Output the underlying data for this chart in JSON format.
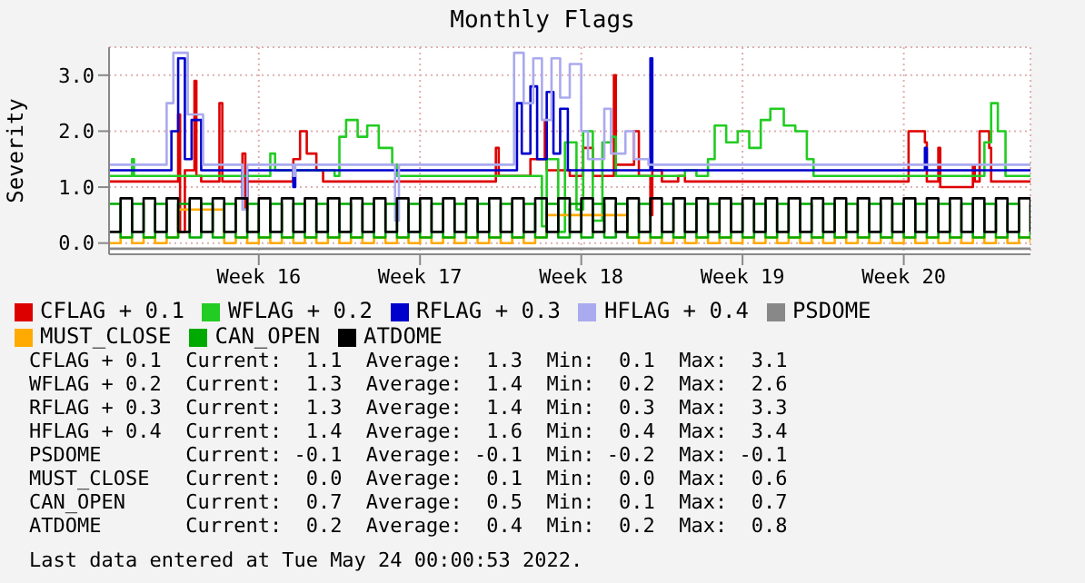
{
  "chart_data": {
    "type": "step",
    "title": "Monthly Flags",
    "ylabel": "Severity",
    "ylim": [
      -0.2,
      3.5
    ],
    "yticks": [
      {
        "value": 0,
        "label": "0.0"
      },
      {
        "value": 1,
        "label": "1.0"
      },
      {
        "value": 2,
        "label": "2.0"
      },
      {
        "value": 3,
        "label": "3.0"
      }
    ],
    "xlim": [
      "2022-04-15T00:00",
      "2022-05-25T00:00"
    ],
    "xticks": [
      {
        "value": "2022-04-21T12:00",
        "label": "Week 16"
      },
      {
        "value": "2022-04-28T12:00",
        "label": "Week 17"
      },
      {
        "value": "2022-05-05T12:00",
        "label": "Week 18"
      },
      {
        "value": "2022-05-12T12:00",
        "label": "Week 19"
      },
      {
        "value": "2022-05-19T12:00",
        "label": "Week 20"
      }
    ],
    "grid": true,
    "legend": "bottom",
    "marker": "none",
    "x": [
      "2022-04-15T00:00",
      "2022-04-15T12:00",
      "2022-04-16T00:00",
      "2022-04-16T12:00",
      "2022-04-17T00:00",
      "2022-04-17T12:00",
      "2022-04-18T00:00",
      "2022-04-18T12:00",
      "2022-04-19T00:00",
      "2022-04-19T12:00",
      "2022-04-20T00:00",
      "2022-04-20T12:00",
      "2022-04-21T00:00",
      "2022-04-21T12:00",
      "2022-04-22T00:00",
      "2022-04-22T12:00",
      "2022-04-23T00:00",
      "2022-04-23T12:00",
      "2022-04-24T00:00",
      "2022-04-24T12:00",
      "2022-04-25T00:00",
      "2022-04-25T12:00",
      "2022-04-26T00:00",
      "2022-04-26T12:00",
      "2022-04-27T00:00",
      "2022-04-27T12:00",
      "2022-04-28T00:00",
      "2022-04-28T12:00",
      "2022-04-29T00:00",
      "2022-04-29T12:00",
      "2022-04-30T00:00",
      "2022-04-30T12:00",
      "2022-05-01T00:00",
      "2022-05-01T12:00",
      "2022-05-02T00:00",
      "2022-05-02T12:00",
      "2022-05-03T00:00",
      "2022-05-03T12:00",
      "2022-05-04T00:00",
      "2022-05-04T12:00",
      "2022-05-05T00:00",
      "2022-05-05T12:00",
      "2022-05-06T00:00",
      "2022-05-06T12:00",
      "2022-05-07T00:00",
      "2022-05-07T12:00",
      "2022-05-08T00:00",
      "2022-05-08T12:00",
      "2022-05-09T00:00",
      "2022-05-09T12:00",
      "2022-05-10T00:00",
      "2022-05-10T12:00",
      "2022-05-11T00:00",
      "2022-05-11T12:00",
      "2022-05-12T00:00",
      "2022-05-12T12:00",
      "2022-05-13T00:00",
      "2022-05-13T12:00",
      "2022-05-14T00:00",
      "2022-05-14T12:00",
      "2022-05-15T00:00",
      "2022-05-15T12:00",
      "2022-05-16T00:00",
      "2022-05-16T12:00",
      "2022-05-17T00:00",
      "2022-05-17T12:00",
      "2022-05-18T00:00",
      "2022-05-18T12:00",
      "2022-05-19T00:00",
      "2022-05-19T12:00",
      "2022-05-20T00:00",
      "2022-05-20T12:00",
      "2022-05-21T00:00",
      "2022-05-21T12:00",
      "2022-05-22T00:00",
      "2022-05-22T12:00",
      "2022-05-23T00:00",
      "2022-05-23T12:00",
      "2022-05-24T00:00",
      "2022-05-24T12:00",
      "2022-05-25T00:00"
    ],
    "series": [
      {
        "name": "CFLAG + 0.1",
        "color": "#dd0000",
        "x": [
          "2022-04-15T00:00",
          "2022-04-17T22:00",
          "2022-04-18T00:00",
          "2022-04-18T02:00",
          "2022-04-18T07:00",
          "2022-04-18T17:00",
          "2022-04-18T19:00",
          "2022-04-19T00:00",
          "2022-04-19T19:00",
          "2022-04-19T22:00",
          "2022-04-20T19:00",
          "2022-04-20T22:00",
          "2022-04-21T00:00",
          "2022-04-23T00:00",
          "2022-04-23T07:00",
          "2022-04-23T14:00",
          "2022-04-24T00:00",
          "2022-04-24T07:00",
          "2022-05-01T14:00",
          "2022-05-01T19:00",
          "2022-05-01T22:00",
          "2022-05-03T07:00",
          "2022-05-03T22:00",
          "2022-05-04T00:00",
          "2022-05-05T00:00",
          "2022-05-05T14:00",
          "2022-05-06T00:00",
          "2022-05-06T22:00",
          "2022-05-07T00:00",
          "2022-05-07T19:00",
          "2022-05-08T00:00",
          "2022-05-08T12:00",
          "2022-05-08T14:00",
          "2022-05-09T00:00",
          "2022-05-09T17:00",
          "2022-05-10T00:00",
          "2022-05-19T14:00",
          "2022-05-19T17:00",
          "2022-05-20T10:00",
          "2022-05-20T12:00",
          "2022-05-21T00:00",
          "2022-05-21T02:00",
          "2022-05-22T12:00",
          "2022-05-22T14:00",
          "2022-05-22T19:00",
          "2022-05-23T05:00",
          "2022-05-23T07:00",
          "2022-05-25T00:00"
        ],
        "values": [
          1.1,
          1.1,
          2.3,
          0.2,
          1.3,
          2.9,
          1.2,
          1.1,
          2.5,
          1.1,
          1.6,
          0.6,
          1.1,
          1.5,
          2.0,
          1.6,
          1.3,
          1.1,
          1.1,
          1.7,
          1.2,
          1.5,
          2.2,
          1.3,
          1.2,
          1.7,
          1.2,
          3.0,
          1.4,
          2.0,
          1.2,
          0.5,
          1.3,
          1.1,
          1.2,
          1.1,
          1.1,
          2.0,
          1.8,
          1.1,
          1.7,
          1.0,
          1.4,
          1.1,
          2.0,
          1.7,
          1.1,
          1.1
        ]
      },
      {
        "name": "WFLAG + 0.2",
        "color": "#22cc22",
        "x": [
          "2022-04-15T00:00",
          "2022-04-16T00:00",
          "2022-04-16T02:00",
          "2022-04-21T12:00",
          "2022-04-22T00:00",
          "2022-04-22T05:00",
          "2022-04-24T19:00",
          "2022-04-25T00:00",
          "2022-04-25T07:00",
          "2022-04-25T19:00",
          "2022-04-26T05:00",
          "2022-04-26T17:00",
          "2022-04-27T07:00",
          "2022-04-27T12:00",
          "2022-05-03T12:00",
          "2022-05-03T19:00",
          "2022-05-04T00:00",
          "2022-05-04T12:00",
          "2022-05-04T19:00",
          "2022-05-05T07:00",
          "2022-05-05T14:00",
          "2022-05-06T00:00",
          "2022-05-06T10:00",
          "2022-05-06T19:00",
          "2022-05-07T00:00",
          "2022-05-10T00:00",
          "2022-05-10T12:00",
          "2022-05-11T00:00",
          "2022-05-11T07:00",
          "2022-05-11T19:00",
          "2022-05-12T07:00",
          "2022-05-12T19:00",
          "2022-05-13T07:00",
          "2022-05-13T17:00",
          "2022-05-14T07:00",
          "2022-05-14T19:00",
          "2022-05-15T07:00",
          "2022-05-15T14:00",
          "2022-05-22T19:00",
          "2022-05-23T00:00",
          "2022-05-23T07:00",
          "2022-05-23T14:00",
          "2022-05-23T22:00",
          "2022-05-25T00:00"
        ],
        "values": [
          1.2,
          1.5,
          1.2,
          1.2,
          1.6,
          1.3,
          1.2,
          1.9,
          2.2,
          1.9,
          2.1,
          1.7,
          1.4,
          1.2,
          1.2,
          0.3,
          1.5,
          0.2,
          1.8,
          0.6,
          2.0,
          0.4,
          1.8,
          1.9,
          1.2,
          1.3,
          1.2,
          1.5,
          2.1,
          1.8,
          2.0,
          1.7,
          2.2,
          2.4,
          2.1,
          2.0,
          1.5,
          1.2,
          1.2,
          1.8,
          2.5,
          2.0,
          1.2,
          1.2
        ]
      },
      {
        "name": "RFLAG + 0.3",
        "color": "#0000cc",
        "x": [
          "2022-04-15T00:00",
          "2022-04-17T14:00",
          "2022-04-17T17:00",
          "2022-04-18T00:00",
          "2022-04-18T07:00",
          "2022-04-18T14:00",
          "2022-04-18T22:00",
          "2022-04-19T00:00",
          "2022-04-20T17:00",
          "2022-04-20T19:00",
          "2022-04-21T00:00",
          "2022-04-23T00:00",
          "2022-04-23T02:00",
          "2022-05-02T12:00",
          "2022-05-02T17:00",
          "2022-05-02T22:00",
          "2022-05-03T07:00",
          "2022-05-03T14:00",
          "2022-05-04T00:00",
          "2022-05-04T07:00",
          "2022-05-04T14:00",
          "2022-05-04T22:00",
          "2022-05-08T10:00",
          "2022-05-08T12:00",
          "2022-05-08T14:00",
          "2022-05-20T07:00",
          "2022-05-20T10:00",
          "2022-05-20T12:00",
          "2022-05-25T00:00"
        ],
        "values": [
          1.3,
          1.3,
          2.0,
          3.3,
          1.5,
          2.2,
          2.2,
          1.3,
          1.3,
          0.8,
          1.3,
          1.0,
          1.3,
          1.3,
          2.5,
          1.6,
          2.8,
          1.5,
          2.7,
          1.6,
          2.4,
          1.3,
          1.3,
          3.3,
          1.3,
          1.3,
          1.7,
          1.3,
          1.3
        ]
      },
      {
        "name": "HFLAG + 0.4",
        "color": "#aaaaee",
        "x": [
          "2022-04-15T00:00",
          "2022-04-17T10:00",
          "2022-04-17T12:00",
          "2022-04-17T19:00",
          "2022-04-18T07:00",
          "2022-04-18T10:00",
          "2022-04-19T00:00",
          "2022-04-19T02:00",
          "2022-04-20T17:00",
          "2022-04-20T19:00",
          "2022-04-21T00:00",
          "2022-04-23T00:00",
          "2022-04-23T02:00",
          "2022-04-27T07:00",
          "2022-04-27T10:00",
          "2022-04-27T14:00",
          "2022-05-02T10:00",
          "2022-05-02T14:00",
          "2022-05-03T00:00",
          "2022-05-03T10:00",
          "2022-05-03T19:00",
          "2022-05-04T05:00",
          "2022-05-04T14:00",
          "2022-05-05T00:00",
          "2022-05-05T12:00",
          "2022-05-05T19:00",
          "2022-05-06T12:00",
          "2022-05-06T19:00",
          "2022-05-07T10:00",
          "2022-05-07T19:00",
          "2022-05-08T10:00",
          "2022-05-25T00:00"
        ],
        "values": [
          1.4,
          1.4,
          2.5,
          3.4,
          3.4,
          2.3,
          2.3,
          1.4,
          1.4,
          0.6,
          1.4,
          1.2,
          1.4,
          1.4,
          0.4,
          1.4,
          1.4,
          3.4,
          2.5,
          3.3,
          2.2,
          3.3,
          2.6,
          3.2,
          2.0,
          1.5,
          2.4,
          1.6,
          2.0,
          1.5,
          1.4,
          1.4
        ]
      },
      {
        "name": "PSDOME",
        "color": "#888888",
        "x": [
          "2022-04-15T00:00",
          "2022-05-25T00:00"
        ],
        "values": [
          -0.1,
          -0.1
        ]
      },
      {
        "name": "MUST_CLOSE",
        "color": "#ffaa00",
        "values": [
          0.0,
          0.1,
          0.0,
          0.1,
          0.0,
          0.1,
          0.6,
          0.6,
          0.6,
          0.6,
          0.0,
          0.1,
          0.0,
          0.1,
          0.0,
          0.1,
          0.0,
          0.1,
          0.0,
          0.1,
          0.0,
          0.1,
          0.0,
          0.1,
          0.0,
          0.1,
          0.0,
          0.1,
          0.0,
          0.1,
          0.0,
          0.1,
          0.0,
          0.1,
          0.0,
          0.1,
          0.0,
          0.1,
          0.5,
          0.5,
          0.5,
          0.5,
          0.5,
          0.5,
          0.5,
          0.1,
          0.0,
          0.1,
          0.0,
          0.1,
          0.0,
          0.1,
          0.0,
          0.1,
          0.0,
          0.1,
          0.0,
          0.1,
          0.0,
          0.1,
          0.0,
          0.1,
          0.0,
          0.1,
          0.0,
          0.1,
          0.0,
          0.1,
          0.0,
          0.1,
          0.0,
          0.1,
          0.0,
          0.1,
          0.0,
          0.1,
          0.0,
          0.1,
          0.0,
          0.1,
          0.0
        ]
      },
      {
        "name": "CAN_OPEN",
        "color": "#00aa00",
        "values": [
          0.7,
          0.1,
          0.7,
          0.1,
          0.7,
          0.1,
          0.7,
          0.1,
          0.7,
          0.1,
          0.7,
          0.1,
          0.7,
          0.1,
          0.7,
          0.1,
          0.7,
          0.1,
          0.7,
          0.1,
          0.7,
          0.1,
          0.7,
          0.1,
          0.7,
          0.1,
          0.7,
          0.1,
          0.7,
          0.1,
          0.7,
          0.1,
          0.7,
          0.1,
          0.7,
          0.1,
          0.7,
          0.1,
          0.7,
          0.1,
          0.7,
          0.1,
          0.7,
          0.1,
          0.7,
          0.1,
          0.7,
          0.1,
          0.7,
          0.1,
          0.7,
          0.1,
          0.7,
          0.1,
          0.7,
          0.1,
          0.7,
          0.1,
          0.7,
          0.1,
          0.7,
          0.1,
          0.7,
          0.1,
          0.7,
          0.1,
          0.7,
          0.1,
          0.7,
          0.1,
          0.7,
          0.1,
          0.7,
          0.1,
          0.7,
          0.1,
          0.7,
          0.1,
          0.7,
          0.1,
          0.7
        ]
      },
      {
        "name": "ATDOME",
        "color": "#000000",
        "values": [
          0.2,
          0.8,
          0.2,
          0.8,
          0.2,
          0.8,
          0.2,
          0.8,
          0.2,
          0.8,
          0.2,
          0.8,
          0.2,
          0.8,
          0.2,
          0.8,
          0.2,
          0.8,
          0.2,
          0.8,
          0.2,
          0.8,
          0.2,
          0.8,
          0.2,
          0.8,
          0.2,
          0.8,
          0.2,
          0.8,
          0.2,
          0.8,
          0.2,
          0.8,
          0.2,
          0.8,
          0.2,
          0.8,
          0.2,
          0.8,
          0.2,
          0.8,
          0.2,
          0.8,
          0.2,
          0.8,
          0.2,
          0.8,
          0.2,
          0.8,
          0.2,
          0.8,
          0.2,
          0.8,
          0.2,
          0.8,
          0.2,
          0.8,
          0.2,
          0.8,
          0.2,
          0.8,
          0.2,
          0.8,
          0.2,
          0.8,
          0.2,
          0.8,
          0.2,
          0.8,
          0.2,
          0.8,
          0.2,
          0.8,
          0.2,
          0.8,
          0.2,
          0.8,
          0.2,
          0.8,
          0.2
        ]
      }
    ],
    "annotations": [
      "CFLAG + 0.1  Current:  1.1  Average:  1.3  Min:  0.1  Max:  3.1",
      "WFLAG + 0.2  Current:  1.3  Average:  1.4  Min:  0.2  Max:  2.6",
      "RFLAG + 0.3  Current:  1.3  Average:  1.4  Min:  0.3  Max:  3.3",
      "HFLAG + 0.4  Current:  1.4  Average:  1.6  Min:  0.4  Max:  3.4",
      "PSDOME       Current: -0.1  Average: -0.1  Min: -0.2  Max: -0.1",
      "MUST_CLOSE   Current:  0.0  Average:  0.1  Min:  0.0  Max:  0.6",
      "CAN_OPEN     Current:  0.7  Average:  0.5  Min:  0.1  Max:  0.7",
      "ATDOME       Current:  0.2  Average:  0.4  Min:  0.2  Max:  0.8",
      "Last data entered at Tue May 24 00:00:53 2022."
    ]
  }
}
